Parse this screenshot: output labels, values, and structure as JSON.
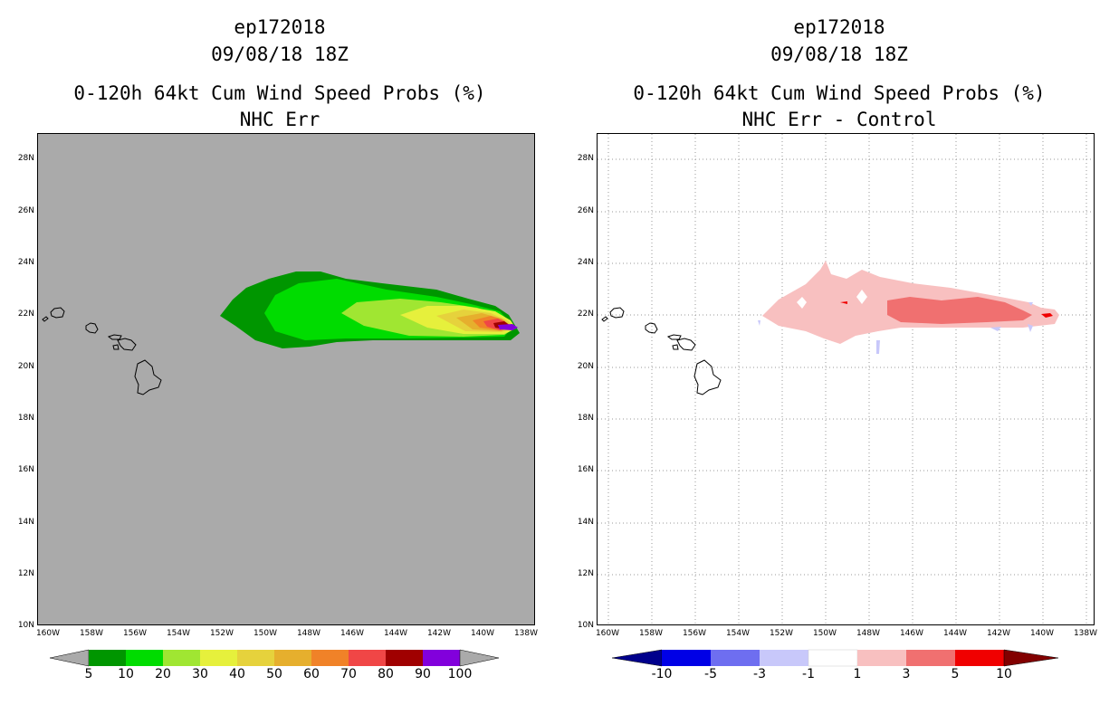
{
  "left": {
    "storm": "ep172018",
    "datetime": "09/08/18 18Z",
    "title": "0-120h 64kt Cum Wind Speed Probs (%)",
    "subtitle": "NHC Err",
    "colorbar": {
      "labels": [
        "5",
        "10",
        "20",
        "30",
        "40",
        "50",
        "60",
        "70",
        "80",
        "90",
        "100"
      ],
      "colors": [
        "#009600",
        "#00dc00",
        "#a0e632",
        "#e6f03c",
        "#e6d23c",
        "#e6af2d",
        "#f08228",
        "#f04646",
        "#a00000",
        "#8200dc"
      ],
      "end_color": "#aaaaaa"
    }
  },
  "right": {
    "storm": "ep172018",
    "datetime": "09/08/18 18Z",
    "title": "0-120h 64kt Cum Wind Speed Probs (%)",
    "subtitle": "NHC Err - Control",
    "colorbar": {
      "labels": [
        "-10",
        "-5",
        "-3",
        "-1",
        "1",
        "3",
        "5",
        "10"
      ],
      "colors": [
        "#0000e6",
        "#6e6ef0",
        "#c8c8fa",
        "#ffffff",
        "#f8c0c0",
        "#f07070",
        "#f00000"
      ],
      "start_color": "#00008c",
      "end_color": "#820000"
    }
  },
  "lat_labels": [
    "28N",
    "26N",
    "24N",
    "22N",
    "20N",
    "18N",
    "16N",
    "14N",
    "12N",
    "10N"
  ],
  "lon_labels": [
    "160W",
    "158W",
    "156W",
    "154W",
    "152W",
    "150W",
    "148W",
    "146W",
    "144W",
    "142W",
    "140W",
    "138W"
  ],
  "colors": {
    "land_bg_left": "#aaaaaa",
    "grid": "#999999"
  }
}
